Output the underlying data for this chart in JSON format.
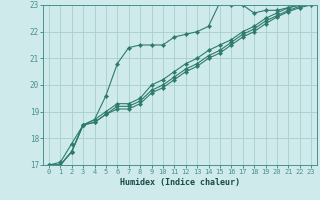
{
  "title": "",
  "xlabel": "Humidex (Indice chaleur)",
  "ylabel": "",
  "xlim": [
    -0.5,
    23.5
  ],
  "ylim": [
    17,
    23
  ],
  "xticks": [
    0,
    1,
    2,
    3,
    4,
    5,
    6,
    7,
    8,
    9,
    10,
    11,
    12,
    13,
    14,
    15,
    16,
    17,
    18,
    19,
    20,
    21,
    22,
    23
  ],
  "yticks": [
    17,
    18,
    19,
    20,
    21,
    22,
    23
  ],
  "bg_color": "#ceeaea",
  "grid_color": "#a8cece",
  "line_color": "#2e7b6e",
  "spine_color": "#4a9090",
  "xlabel_color": "#1a4a4a",
  "lines": [
    {
      "x": [
        0,
        1,
        2,
        3,
        4,
        5,
        6,
        7,
        8,
        9,
        10,
        11,
        12,
        13,
        14,
        15,
        16,
        17,
        18,
        19,
        20,
        21,
        22,
        23
      ],
      "y": [
        17.0,
        17.1,
        17.8,
        18.5,
        18.7,
        19.6,
        20.8,
        21.4,
        21.5,
        21.5,
        21.5,
        21.8,
        21.9,
        22.0,
        22.2,
        23.1,
        23.0,
        23.0,
        22.7,
        22.8,
        22.8,
        22.9,
        23.0,
        23.1
      ]
    },
    {
      "x": [
        0,
        1,
        2,
        3,
        4,
        5,
        6,
        7,
        8,
        9,
        10,
        11,
        12,
        13,
        14,
        15,
        16,
        17,
        18,
        19,
        20,
        21,
        22,
        23
      ],
      "y": [
        17.0,
        17.0,
        17.5,
        18.5,
        18.7,
        19.0,
        19.3,
        19.3,
        19.5,
        20.0,
        20.2,
        20.5,
        20.8,
        21.0,
        21.3,
        21.5,
        21.7,
        22.0,
        22.2,
        22.5,
        22.7,
        22.9,
        23.0,
        23.1
      ]
    },
    {
      "x": [
        0,
        1,
        2,
        3,
        4,
        5,
        6,
        7,
        8,
        9,
        10,
        11,
        12,
        13,
        14,
        15,
        16,
        17,
        18,
        19,
        20,
        21,
        22,
        23
      ],
      "y": [
        17.0,
        17.0,
        17.5,
        18.5,
        18.6,
        18.9,
        19.2,
        19.2,
        19.4,
        19.8,
        20.0,
        20.3,
        20.6,
        20.8,
        21.1,
        21.3,
        21.6,
        21.9,
        22.1,
        22.4,
        22.6,
        22.8,
        22.95,
        23.05
      ]
    },
    {
      "x": [
        0,
        1,
        2,
        3,
        4,
        5,
        6,
        7,
        8,
        9,
        10,
        11,
        12,
        13,
        14,
        15,
        16,
        17,
        18,
        19,
        20,
        21,
        22,
        23
      ],
      "y": [
        17.0,
        17.0,
        17.5,
        18.5,
        18.6,
        18.9,
        19.1,
        19.1,
        19.3,
        19.7,
        19.9,
        20.2,
        20.5,
        20.7,
        21.0,
        21.2,
        21.5,
        21.8,
        22.0,
        22.3,
        22.55,
        22.75,
        22.9,
        23.0
      ]
    }
  ]
}
